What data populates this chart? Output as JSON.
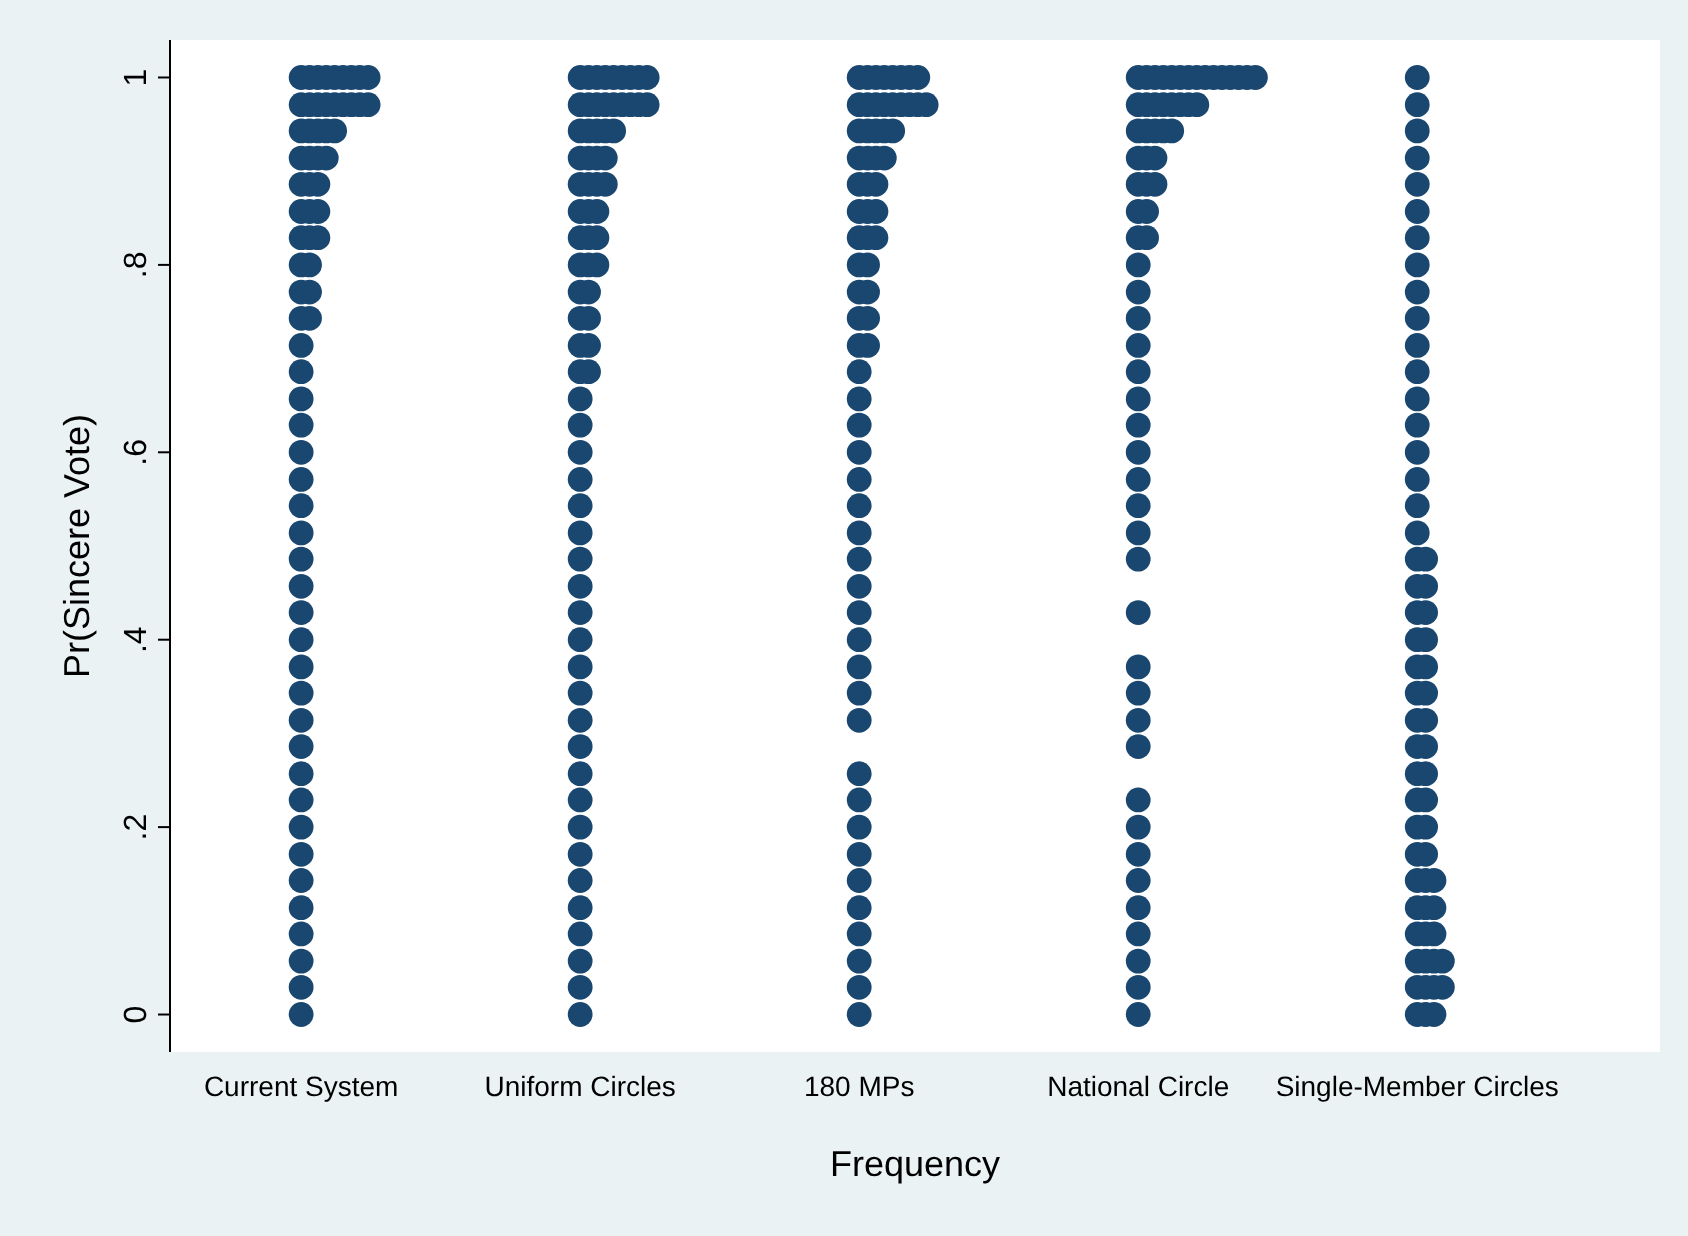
{
  "chart_data": {
    "type": "scatter",
    "xlabel": "Frequency",
    "ylabel": "Pr(Sincere Vote)",
    "marker": "circle",
    "grid": false,
    "legend": false,
    "categories": [
      "Current System",
      "Uniform Circles",
      "180 MPs",
      "National Circle",
      "Single-Member Circles"
    ],
    "ylim": [
      -0.04,
      1.04
    ],
    "yticks": [
      {
        "value": 0,
        "label": "0"
      },
      {
        "value": 0.2,
        "label": ".2"
      },
      {
        "value": 0.4,
        "label": ".4"
      },
      {
        "value": 0.6,
        "label": ".6"
      },
      {
        "value": 0.8,
        "label": ".8"
      },
      {
        "value": 1,
        "label": "1"
      }
    ],
    "series": [
      {
        "color": "#1a4770",
        "x": [
          "Current System",
          "Current System",
          "Current System",
          "Current System",
          "Current System",
          "Current System",
          "Current System",
          "Current System",
          "Current System",
          "Current System",
          "Current System",
          "Current System",
          "Current System",
          "Current System",
          "Current System",
          "Current System",
          "Current System",
          "Current System",
          "Current System",
          "Current System",
          "Current System",
          "Current System",
          "Current System",
          "Current System",
          "Current System",
          "Current System",
          "Current System",
          "Current System",
          "Current System",
          "Current System",
          "Current System",
          "Current System",
          "Current System",
          "Current System",
          "Current System",
          "Current System",
          "Current System",
          "Current System",
          "Current System",
          "Current System",
          "Current System",
          "Current System",
          "Current System",
          "Current System",
          "Current System",
          "Current System",
          "Current System",
          "Current System",
          "Current System",
          "Current System",
          "Current System",
          "Current System",
          "Current System",
          "Current System",
          "Current System",
          "Current System",
          "Current System",
          "Current System",
          "Current System",
          "Current System",
          "Current System",
          "Current System",
          "Current System",
          "Current System",
          "Current System",
          "Current System",
          "Current System",
          "Current System"
        ],
        "values": [
          0,
          0.029,
          0.057,
          0.086,
          0.114,
          0.143,
          0.171,
          0.2,
          0.229,
          0.257,
          0.286,
          0.314,
          0.343,
          0.371,
          0.4,
          0.429,
          0.457,
          0.486,
          0.514,
          0.543,
          0.571,
          0.6,
          0.629,
          0.657,
          0.686,
          0.714,
          0.743,
          0.771,
          0.8,
          0.829,
          0.857,
          0.886,
          0.914,
          0.943,
          0.971,
          1,
          1,
          1,
          1,
          1,
          1,
          1,
          1,
          1,
          0.971,
          0.971,
          0.971,
          0.971,
          0.971,
          0.971,
          0.971,
          0.971,
          0.943,
          0.943,
          0.943,
          0.943,
          0.914,
          0.914,
          0.914,
          0.886,
          0.886,
          0.857,
          0.857,
          0.829,
          0.829,
          0.8,
          0.771,
          0.743
        ]
      },
      {
        "color": "#1a4770",
        "x": [
          "Uniform Circles",
          "Uniform Circles",
          "Uniform Circles",
          "Uniform Circles",
          "Uniform Circles",
          "Uniform Circles",
          "Uniform Circles",
          "Uniform Circles",
          "Uniform Circles",
          "Uniform Circles",
          "Uniform Circles",
          "Uniform Circles",
          "Uniform Circles",
          "Uniform Circles",
          "Uniform Circles",
          "Uniform Circles",
          "Uniform Circles",
          "Uniform Circles",
          "Uniform Circles",
          "Uniform Circles",
          "Uniform Circles",
          "Uniform Circles",
          "Uniform Circles",
          "Uniform Circles",
          "Uniform Circles",
          "Uniform Circles",
          "Uniform Circles",
          "Uniform Circles",
          "Uniform Circles",
          "Uniform Circles",
          "Uniform Circles",
          "Uniform Circles",
          "Uniform Circles",
          "Uniform Circles",
          "Uniform Circles",
          "Uniform Circles",
          "Uniform Circles",
          "Uniform Circles",
          "Uniform Circles",
          "Uniform Circles",
          "Uniform Circles",
          "Uniform Circles",
          "Uniform Circles",
          "Uniform Circles",
          "Uniform Circles",
          "Uniform Circles",
          "Uniform Circles",
          "Uniform Circles",
          "Uniform Circles",
          "Uniform Circles",
          "Uniform Circles",
          "Uniform Circles",
          "Uniform Circles",
          "Uniform Circles",
          "Uniform Circles",
          "Uniform Circles",
          "Uniform Circles",
          "Uniform Circles",
          "Uniform Circles",
          "Uniform Circles",
          "Uniform Circles",
          "Uniform Circles",
          "Uniform Circles",
          "Uniform Circles",
          "Uniform Circles",
          "Uniform Circles",
          "Uniform Circles",
          "Uniform Circles",
          "Uniform Circles",
          "Uniform Circles",
          "Uniform Circles",
          "Uniform Circles"
        ],
        "values": [
          0,
          0.029,
          0.057,
          0.086,
          0.114,
          0.143,
          0.171,
          0.2,
          0.229,
          0.257,
          0.286,
          0.314,
          0.343,
          0.371,
          0.4,
          0.429,
          0.457,
          0.486,
          0.514,
          0.543,
          0.571,
          0.6,
          0.629,
          0.657,
          0.686,
          0.714,
          0.743,
          0.771,
          0.8,
          0.829,
          0.857,
          0.886,
          0.914,
          0.943,
          0.971,
          1,
          1,
          1,
          1,
          1,
          1,
          1,
          1,
          1,
          0.971,
          0.971,
          0.971,
          0.971,
          0.971,
          0.971,
          0.971,
          0.971,
          0.943,
          0.943,
          0.943,
          0.943,
          0.914,
          0.914,
          0.914,
          0.886,
          0.886,
          0.886,
          0.857,
          0.857,
          0.829,
          0.829,
          0.8,
          0.8,
          0.771,
          0.743,
          0.714,
          0.686
        ]
      },
      {
        "color": "#1a4770",
        "x": [
          "180 MPs",
          "180 MPs",
          "180 MPs",
          "180 MPs",
          "180 MPs",
          "180 MPs",
          "180 MPs",
          "180 MPs",
          "180 MPs",
          "180 MPs",
          "180 MPs",
          "180 MPs",
          "180 MPs",
          "180 MPs",
          "180 MPs",
          "180 MPs",
          "180 MPs",
          "180 MPs",
          "180 MPs",
          "180 MPs",
          "180 MPs",
          "180 MPs",
          "180 MPs",
          "180 MPs",
          "180 MPs",
          "180 MPs",
          "180 MPs",
          "180 MPs",
          "180 MPs",
          "180 MPs",
          "180 MPs",
          "180 MPs",
          "180 MPs",
          "180 MPs",
          "180 MPs",
          "180 MPs",
          "180 MPs",
          "180 MPs",
          "180 MPs",
          "180 MPs",
          "180 MPs",
          "180 MPs",
          "180 MPs",
          "180 MPs",
          "180 MPs",
          "180 MPs",
          "180 MPs",
          "180 MPs",
          "180 MPs",
          "180 MPs",
          "180 MPs",
          "180 MPs",
          "180 MPs",
          "180 MPs",
          "180 MPs",
          "180 MPs",
          "180 MPs",
          "180 MPs",
          "180 MPs",
          "180 MPs",
          "180 MPs",
          "180 MPs",
          "180 MPs",
          "180 MPs",
          "180 MPs",
          "180 MPs",
          "180 MPs"
        ],
        "values": [
          0,
          0.029,
          0.057,
          0.086,
          0.114,
          0.143,
          0.171,
          0.2,
          0.229,
          0.257,
          0.314,
          0.343,
          0.371,
          0.4,
          0.429,
          0.457,
          0.486,
          0.514,
          0.543,
          0.571,
          0.6,
          0.629,
          0.657,
          0.686,
          0.714,
          0.743,
          0.771,
          0.8,
          0.829,
          0.857,
          0.886,
          0.914,
          0.943,
          0.971,
          1,
          1,
          1,
          1,
          1,
          1,
          1,
          1,
          0.971,
          0.971,
          0.971,
          0.971,
          0.971,
          0.971,
          0.971,
          0.971,
          0.943,
          0.943,
          0.943,
          0.943,
          0.914,
          0.914,
          0.914,
          0.886,
          0.886,
          0.857,
          0.857,
          0.829,
          0.829,
          0.8,
          0.771,
          0.743,
          0.714
        ]
      },
      {
        "color": "#1a4770",
        "x": [
          "National Circle",
          "National Circle",
          "National Circle",
          "National Circle",
          "National Circle",
          "National Circle",
          "National Circle",
          "National Circle",
          "National Circle",
          "National Circle",
          "National Circle",
          "National Circle",
          "National Circle",
          "National Circle",
          "National Circle",
          "National Circle",
          "National Circle",
          "National Circle",
          "National Circle",
          "National Circle",
          "National Circle",
          "National Circle",
          "National Circle",
          "National Circle",
          "National Circle",
          "National Circle",
          "National Circle",
          "National Circle",
          "National Circle",
          "National Circle",
          "National Circle",
          "National Circle",
          "National Circle",
          "National Circle",
          "National Circle",
          "National Circle",
          "National Circle",
          "National Circle",
          "National Circle",
          "National Circle",
          "National Circle",
          "National Circle",
          "National Circle",
          "National Circle",
          "National Circle",
          "National Circle",
          "National Circle",
          "National Circle",
          "National Circle",
          "National Circle",
          "National Circle",
          "National Circle",
          "National Circle",
          "National Circle",
          "National Circle",
          "National Circle",
          "National Circle",
          "National Circle",
          "National Circle",
          "National Circle",
          "National Circle",
          "National Circle",
          "National Circle",
          "National Circle"
        ],
        "values": [
          0,
          0.029,
          0.057,
          0.086,
          0.114,
          0.143,
          0.171,
          0.2,
          0.229,
          0.286,
          0.314,
          0.343,
          0.371,
          0.429,
          0.486,
          0.514,
          0.543,
          0.571,
          0.6,
          0.629,
          0.657,
          0.686,
          0.714,
          0.743,
          0.771,
          0.8,
          0.829,
          0.857,
          0.886,
          0.914,
          0.943,
          0.971,
          1,
          1,
          1,
          1,
          1,
          1,
          1,
          1,
          1,
          1,
          1,
          1,
          1,
          1,
          1,
          0.971,
          0.971,
          0.971,
          0.971,
          0.971,
          0.971,
          0.971,
          0.943,
          0.943,
          0.943,
          0.943,
          0.914,
          0.914,
          0.886,
          0.886,
          0.857,
          0.829
        ]
      },
      {
        "color": "#1a4770",
        "x": [
          "Single-Member Circles",
          "Single-Member Circles",
          "Single-Member Circles",
          "Single-Member Circles",
          "Single-Member Circles",
          "Single-Member Circles",
          "Single-Member Circles",
          "Single-Member Circles",
          "Single-Member Circles",
          "Single-Member Circles",
          "Single-Member Circles",
          "Single-Member Circles",
          "Single-Member Circles",
          "Single-Member Circles",
          "Single-Member Circles",
          "Single-Member Circles",
          "Single-Member Circles",
          "Single-Member Circles",
          "Single-Member Circles",
          "Single-Member Circles",
          "Single-Member Circles",
          "Single-Member Circles",
          "Single-Member Circles",
          "Single-Member Circles",
          "Single-Member Circles",
          "Single-Member Circles",
          "Single-Member Circles",
          "Single-Member Circles",
          "Single-Member Circles",
          "Single-Member Circles",
          "Single-Member Circles",
          "Single-Member Circles",
          "Single-Member Circles",
          "Single-Member Circles",
          "Single-Member Circles",
          "Single-Member Circles",
          "Single-Member Circles",
          "Single-Member Circles",
          "Single-Member Circles",
          "Single-Member Circles",
          "Single-Member Circles",
          "Single-Member Circles",
          "Single-Member Circles",
          "Single-Member Circles",
          "Single-Member Circles",
          "Single-Member Circles",
          "Single-Member Circles",
          "Single-Member Circles",
          "Single-Member Circles",
          "Single-Member Circles",
          "Single-Member Circles",
          "Single-Member Circles",
          "Single-Member Circles",
          "Single-Member Circles",
          "Single-Member Circles",
          "Single-Member Circles",
          "Single-Member Circles",
          "Single-Member Circles",
          "Single-Member Circles",
          "Single-Member Circles",
          "Single-Member Circles",
          "Single-Member Circles"
        ],
        "values": [
          0,
          0.029,
          0.057,
          0.086,
          0.114,
          0.143,
          0.171,
          0.2,
          0.229,
          0.257,
          0.286,
          0.314,
          0.343,
          0.371,
          0.4,
          0.429,
          0.457,
          0.486,
          0.514,
          0.543,
          0.571,
          0.6,
          0.629,
          0.657,
          0.686,
          0.714,
          0.743,
          0.771,
          0.8,
          0.829,
          0.857,
          0.886,
          0.914,
          0.943,
          0.971,
          1,
          0,
          0,
          0.029,
          0.029,
          0.029,
          0.057,
          0.057,
          0.057,
          0.086,
          0.086,
          0.114,
          0.114,
          0.143,
          0.143,
          0.171,
          0.2,
          0.229,
          0.257,
          0.286,
          0.314,
          0.343,
          0.371,
          0.4,
          0.429,
          0.457,
          0.486
        ]
      }
    ]
  }
}
